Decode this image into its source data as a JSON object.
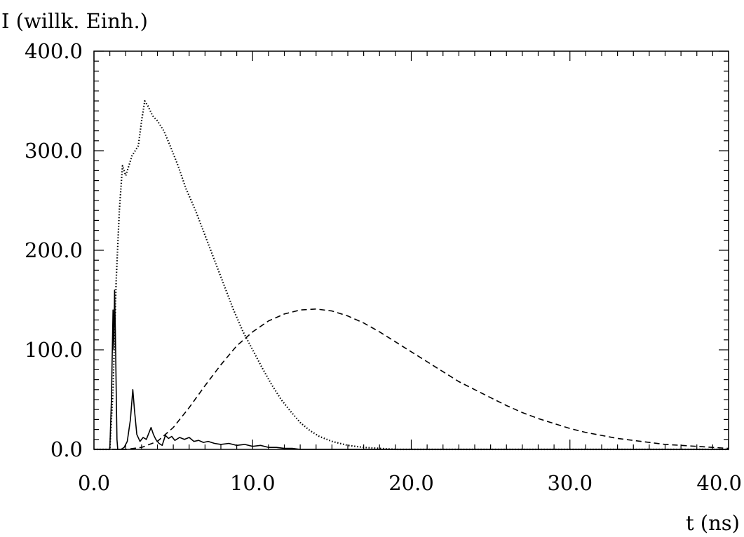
{
  "chart_data": {
    "type": "line",
    "ylabel": "I (willk. Einh.)",
    "xlabel": "t (ns)",
    "xlim": [
      0,
      40
    ],
    "ylim": [
      0,
      400
    ],
    "xticks": [
      "0.0",
      "10.0",
      "20.0",
      "30.0",
      "40.0"
    ],
    "yticks": [
      "0.0",
      "100.0",
      "200.0",
      "300.0",
      "400.0"
    ],
    "grid": false,
    "series": [
      {
        "style": "solid",
        "points": [
          [
            0,
            0
          ],
          [
            1.0,
            0
          ],
          [
            1.1,
            50
          ],
          [
            1.2,
            140
          ],
          [
            1.25,
            100
          ],
          [
            1.3,
            160
          ],
          [
            1.35,
            120
          ],
          [
            1.4,
            60
          ],
          [
            1.45,
            10
          ],
          [
            1.5,
            0
          ],
          [
            1.7,
            0
          ],
          [
            1.9,
            2
          ],
          [
            2.1,
            8
          ],
          [
            2.3,
            30
          ],
          [
            2.45,
            60
          ],
          [
            2.55,
            40
          ],
          [
            2.7,
            15
          ],
          [
            2.9,
            8
          ],
          [
            3.1,
            12
          ],
          [
            3.3,
            10
          ],
          [
            3.5,
            18
          ],
          [
            3.6,
            22
          ],
          [
            3.75,
            15
          ],
          [
            3.9,
            10
          ],
          [
            4.1,
            6
          ],
          [
            4.3,
            4
          ],
          [
            4.5,
            14
          ],
          [
            4.7,
            11
          ],
          [
            4.9,
            13
          ],
          [
            5.1,
            9
          ],
          [
            5.4,
            12
          ],
          [
            5.7,
            10
          ],
          [
            6.0,
            12
          ],
          [
            6.3,
            8
          ],
          [
            6.6,
            9
          ],
          [
            6.9,
            7
          ],
          [
            7.2,
            8
          ],
          [
            7.6,
            6
          ],
          [
            8.0,
            5
          ],
          [
            8.5,
            6
          ],
          [
            9.0,
            4
          ],
          [
            9.5,
            5
          ],
          [
            10.0,
            3
          ],
          [
            10.5,
            4
          ],
          [
            11.0,
            2
          ],
          [
            11.5,
            2
          ],
          [
            12.0,
            1
          ],
          [
            12.5,
            1
          ],
          [
            13.0,
            0
          ],
          [
            14.0,
            0
          ],
          [
            40,
            0
          ]
        ]
      },
      {
        "style": "dotted",
        "points": [
          [
            0,
            0
          ],
          [
            1.0,
            0
          ],
          [
            1.2,
            60
          ],
          [
            1.4,
            170
          ],
          [
            1.6,
            240
          ],
          [
            1.8,
            285
          ],
          [
            2.0,
            275
          ],
          [
            2.2,
            285
          ],
          [
            2.4,
            295
          ],
          [
            2.6,
            300
          ],
          [
            2.8,
            305
          ],
          [
            3.0,
            330
          ],
          [
            3.2,
            350
          ],
          [
            3.4,
            345
          ],
          [
            3.7,
            335
          ],
          [
            4.0,
            330
          ],
          [
            4.4,
            320
          ],
          [
            4.8,
            305
          ],
          [
            5.3,
            285
          ],
          [
            5.8,
            262
          ],
          [
            6.4,
            240
          ],
          [
            7.0,
            215
          ],
          [
            7.6,
            190
          ],
          [
            8.2,
            165
          ],
          [
            8.8,
            140
          ],
          [
            9.4,
            118
          ],
          [
            10.0,
            100
          ],
          [
            10.6,
            82
          ],
          [
            11.2,
            65
          ],
          [
            11.8,
            50
          ],
          [
            12.4,
            38
          ],
          [
            13.0,
            27
          ],
          [
            13.6,
            19
          ],
          [
            14.2,
            13
          ],
          [
            15.0,
            8
          ],
          [
            16.0,
            4
          ],
          [
            17.0,
            2
          ],
          [
            18.0,
            1
          ],
          [
            19.0,
            0
          ],
          [
            20.0,
            0
          ],
          [
            40,
            0
          ]
        ]
      },
      {
        "style": "dashed",
        "points": [
          [
            0,
            0
          ],
          [
            2.0,
            0
          ],
          [
            3.0,
            2
          ],
          [
            4.0,
            8
          ],
          [
            5.0,
            22
          ],
          [
            6.0,
            42
          ],
          [
            7.0,
            64
          ],
          [
            8.0,
            85
          ],
          [
            9.0,
            104
          ],
          [
            10.0,
            118
          ],
          [
            11.0,
            129
          ],
          [
            12.0,
            136
          ],
          [
            13.0,
            140
          ],
          [
            14.0,
            141
          ],
          [
            15.0,
            139
          ],
          [
            16.0,
            134
          ],
          [
            17.0,
            127
          ],
          [
            18.0,
            118
          ],
          [
            19.0,
            108
          ],
          [
            20.0,
            98
          ],
          [
            21.0,
            88
          ],
          [
            22.0,
            78
          ],
          [
            23.0,
            68
          ],
          [
            24.0,
            60
          ],
          [
            25.0,
            52
          ],
          [
            26.0,
            44
          ],
          [
            27.0,
            37
          ],
          [
            28.0,
            31
          ],
          [
            29.0,
            26
          ],
          [
            30.0,
            21
          ],
          [
            31.0,
            17
          ],
          [
            32.0,
            14
          ],
          [
            33.0,
            11
          ],
          [
            34.0,
            9
          ],
          [
            35.0,
            7
          ],
          [
            36.0,
            5
          ],
          [
            37.0,
            4
          ],
          [
            38.0,
            3
          ],
          [
            39.0,
            2
          ],
          [
            40.0,
            1
          ]
        ]
      }
    ]
  }
}
